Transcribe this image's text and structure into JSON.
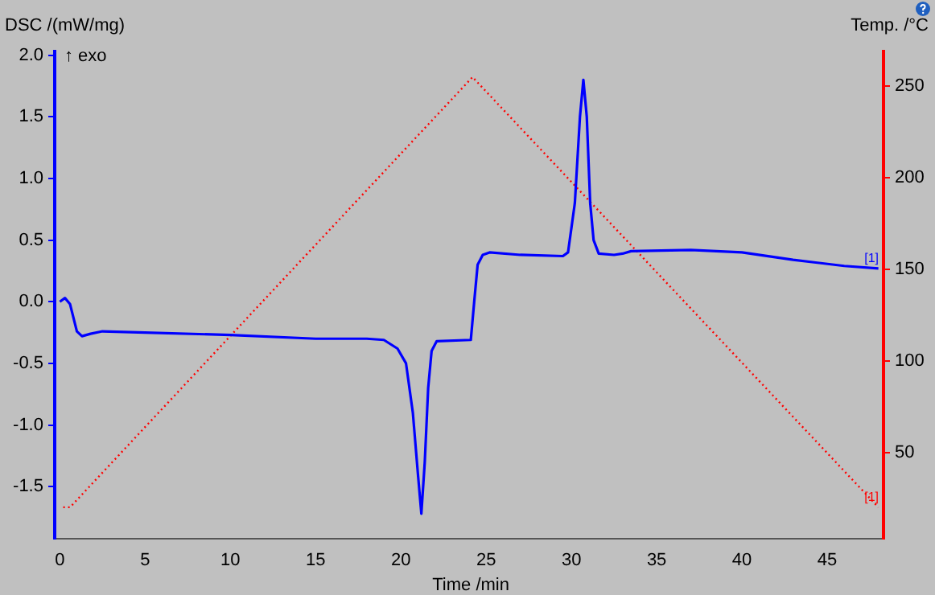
{
  "chart_data": {
    "type": "line",
    "xlabel": "Time /min",
    "ylabel": "DSC /(mW/mg)",
    "y2label": "Temp. /°C",
    "annotations": [
      "↑ exo",
      {
        "text": "[1]",
        "x": 47.6,
        "y": 0.3
      },
      {
        "text": "[1]",
        "x": 47.6,
        "y": -1.64
      }
    ],
    "xlim": [
      -0.3,
      48.3
    ],
    "xticks": [
      0,
      5,
      10,
      15,
      20,
      25,
      30,
      35,
      40,
      45
    ],
    "ylim": [
      -1.92,
      2.03
    ],
    "yticks": [
      -1.5,
      {
        "value": -1,
        "label": "-1.0"
      },
      -0.5,
      {
        "value": 0,
        "label": "0.0"
      },
      0.5,
      {
        "value": 1,
        "label": "1.0"
      },
      1.5,
      {
        "value": 2,
        "label": "2.0"
      }
    ],
    "y2lim": [
      3,
      269
    ],
    "y2ticks": [
      50,
      100,
      150,
      200,
      250
    ],
    "grid": false,
    "legend": false,
    "series": [
      {
        "color": "#0000ff",
        "line_style": "solid",
        "x": [
          0,
          0.3,
          0.6,
          1.0,
          1.3,
          1.8,
          2.5,
          5,
          10,
          15,
          18,
          19,
          19.8,
          20.3,
          20.7,
          21.0,
          21.2,
          21.4,
          21.6,
          21.8,
          22.1,
          24.1,
          24.3,
          24.5,
          24.8,
          25.2,
          27,
          29.5,
          29.8,
          30.2,
          30.5,
          30.7,
          30.9,
          31.1,
          31.3,
          31.6,
          32.5,
          33,
          33.5,
          37,
          40,
          43,
          46,
          48
        ],
        "values": [
          0,
          0.03,
          -0.02,
          -0.24,
          -0.28,
          -0.26,
          -0.24,
          -0.25,
          -0.27,
          -0.3,
          -0.3,
          -0.31,
          -0.38,
          -0.5,
          -0.9,
          -1.4,
          -1.72,
          -1.3,
          -0.7,
          -0.4,
          -0.32,
          -0.31,
          0,
          0.3,
          0.38,
          0.4,
          0.38,
          0.37,
          0.4,
          0.8,
          1.5,
          1.8,
          1.5,
          0.8,
          0.5,
          0.39,
          0.38,
          0.39,
          0.41,
          0.42,
          0.4,
          0.34,
          0.29,
          0.27
        ]
      },
      {
        "color": "#ff0000",
        "axis": "y2",
        "line_style": "dotted",
        "x": [
          0.2,
          0.6,
          24.2,
          48
        ],
        "values": [
          20,
          20,
          255,
          20
        ]
      }
    ]
  }
}
